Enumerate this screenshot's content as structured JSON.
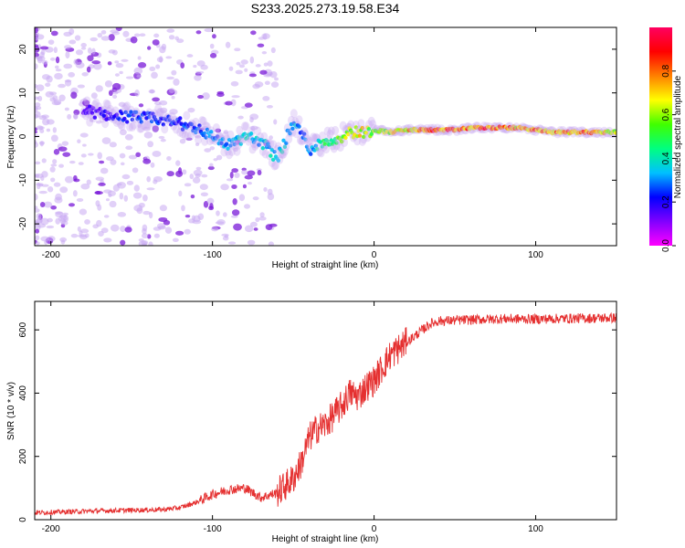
{
  "title": "S233.2025.273.19.58.E34",
  "colors": {
    "snr_line": "#e53030",
    "spectrogram_base": "#7a1ad8",
    "spectrogram_faint": "#c9aaf2",
    "colorbar_stops": [
      "#ff00ff",
      "#8000ff",
      "#0000ff",
      "#00c0ff",
      "#00ff80",
      "#40ff00",
      "#ffff00",
      "#ff8000",
      "#ff0000",
      "#ff0060"
    ]
  },
  "chart_data": [
    {
      "type": "heatmap",
      "title": "S233.2025.273.19.58.E34",
      "xlabel": "Height of straight line (km)",
      "ylabel": "Frequency (Hz)",
      "xlim": [
        -210,
        150
      ],
      "ylim": [
        -25,
        25
      ],
      "xticks": [
        -200,
        -100,
        0,
        100
      ],
      "yticks": [
        -20,
        -10,
        0,
        10,
        20
      ],
      "xtick_labels": [
        "-200",
        "-100",
        "0",
        "100"
      ],
      "ytick_labels": [
        "-20",
        "-10",
        "0",
        "10",
        "20"
      ],
      "colorbar": {
        "label": "Normalized spectral amplitude",
        "range": [
          0.0,
          1.0
        ],
        "ticks": [
          0.0,
          0.2,
          0.4,
          0.6,
          0.8
        ],
        "tick_labels": [
          "0.0",
          "0.2",
          "0.4",
          "0.6",
          "0.8"
        ]
      },
      "ridge": {
        "x": [
          -180,
          -165,
          -150,
          -135,
          -120,
          -110,
          -100,
          -90,
          -80,
          -70,
          -60,
          -50,
          -45,
          -40,
          -35,
          -30,
          -25,
          -20,
          -15,
          -10,
          -5,
          0,
          10,
          20,
          30,
          40,
          50,
          60,
          70,
          80,
          90,
          100,
          110,
          120,
          130,
          140,
          150
        ],
        "freq": [
          6,
          5,
          4.5,
          4,
          3,
          2,
          0,
          -2,
          0,
          -1,
          -5,
          3,
          1,
          -3,
          -2,
          -1,
          -1,
          0,
          1,
          1,
          1,
          1.5,
          1,
          1.5,
          1.5,
          1.5,
          1.5,
          2,
          2,
          2,
          2,
          1.5,
          1,
          1,
          1,
          1,
          1
        ],
        "amplitude": [
          0.15,
          0.2,
          0.25,
          0.25,
          0.25,
          0.3,
          0.3,
          0.35,
          0.4,
          0.35,
          0.4,
          0.35,
          0.3,
          0.3,
          0.4,
          0.5,
          0.55,
          0.6,
          0.65,
          0.7,
          0.65,
          0.6,
          0.7,
          0.75,
          0.85,
          0.9,
          0.85,
          0.8,
          0.9,
          0.85,
          0.75,
          0.8,
          0.85,
          0.8,
          0.85,
          0.75,
          0.7
        ]
      }
    },
    {
      "type": "line",
      "xlabel": "Height of straight line (km)",
      "ylabel": "SNR (10 * v/v)",
      "xlim": [
        -210,
        150
      ],
      "ylim": [
        0,
        690
      ],
      "xticks": [
        -200,
        -100,
        0,
        100
      ],
      "yticks": [
        0,
        200,
        400,
        600
      ],
      "xtick_labels": [
        "-200",
        "-100",
        "0",
        "100"
      ],
      "ytick_labels": [
        "0",
        "200",
        "400",
        "600"
      ],
      "series": [
        {
          "name": "SNR",
          "x": [
            -210,
            -190,
            -170,
            -150,
            -130,
            -120,
            -110,
            -100,
            -90,
            -80,
            -70,
            -60,
            -50,
            -45,
            -40,
            -35,
            -30,
            -25,
            -20,
            -15,
            -10,
            -5,
            0,
            5,
            10,
            15,
            20,
            25,
            30,
            35,
            40,
            50,
            60,
            80,
            100,
            120,
            150
          ],
          "y": [
            22,
            25,
            28,
            30,
            32,
            38,
            55,
            80,
            95,
            100,
            70,
            85,
            130,
            180,
            260,
            290,
            300,
            330,
            360,
            400,
            390,
            420,
            440,
            480,
            520,
            540,
            560,
            580,
            600,
            620,
            628,
            630,
            632,
            635,
            634,
            636,
            638
          ],
          "noise_amplitude": 45
        }
      ]
    }
  ]
}
